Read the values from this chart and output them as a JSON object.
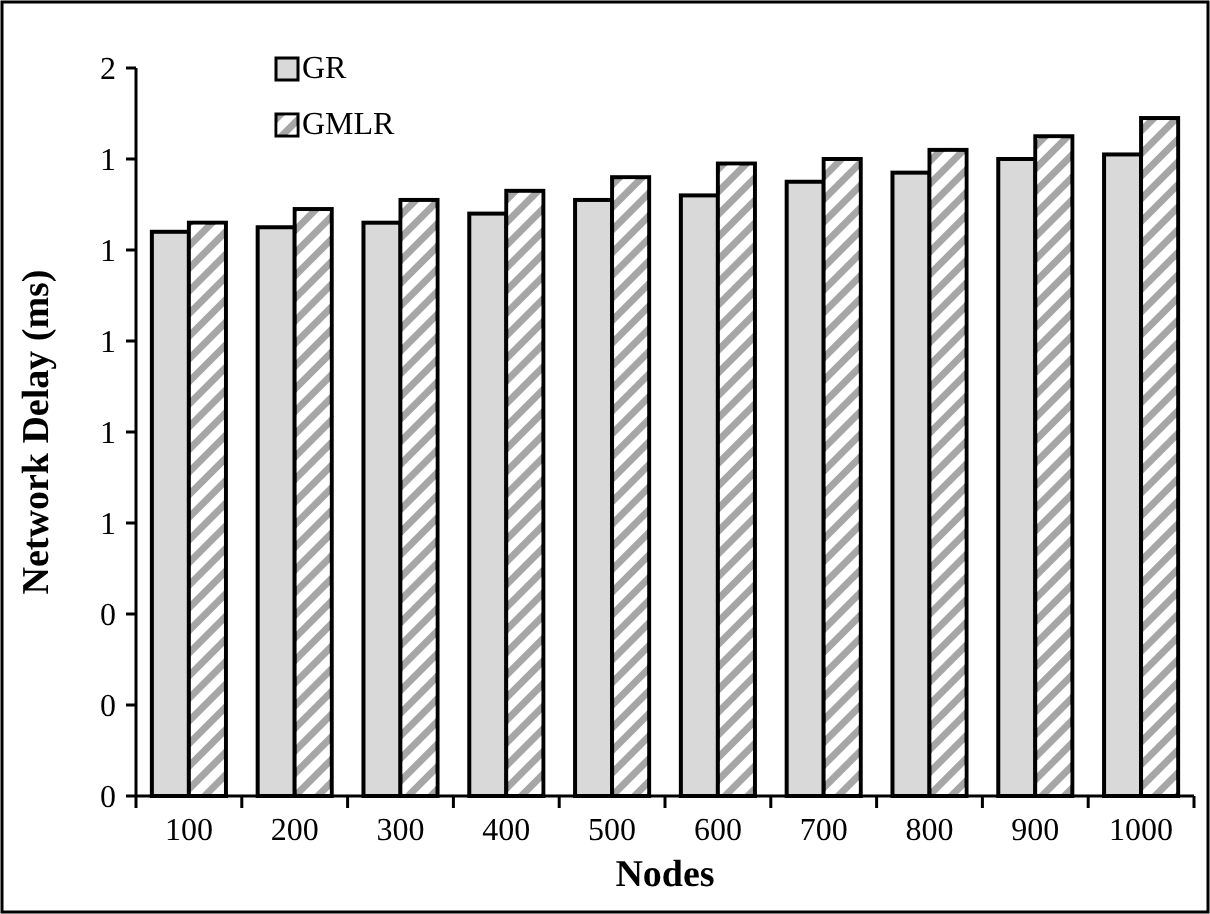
{
  "chart_data": {
    "type": "bar",
    "xlabel": "Nodes",
    "ylabel": "Network Delay (ms)",
    "categories": [
      "100",
      "200",
      "300",
      "400",
      "500",
      "600",
      "700",
      "800",
      "900",
      "1000"
    ],
    "series": [
      {
        "name": "GR",
        "color": "#d9d9d9",
        "values": [
          1.24,
          1.25,
          1.26,
          1.28,
          1.31,
          1.32,
          1.35,
          1.37,
          1.4,
          1.41
        ]
      },
      {
        "name": "GMLR",
        "color": "#a6a6a6",
        "values": [
          1.26,
          1.29,
          1.31,
          1.33,
          1.36,
          1.39,
          1.4,
          1.42,
          1.45,
          1.49
        ]
      }
    ],
    "ylim": [
      0,
      1.6
    ],
    "yticks": [
      {
        "value": 0,
        "label": "0"
      },
      {
        "value": 0.2,
        "label": "0"
      },
      {
        "value": 0.4,
        "label": "0"
      },
      {
        "value": 0.6,
        "label": "1"
      },
      {
        "value": 0.8,
        "label": "1"
      },
      {
        "value": 1.0,
        "label": "1"
      },
      {
        "value": 1.2,
        "label": "1"
      },
      {
        "value": 1.4,
        "label": "1"
      },
      {
        "value": 1.6,
        "label": "2"
      }
    ],
    "grid": false,
    "legend": "top left"
  }
}
